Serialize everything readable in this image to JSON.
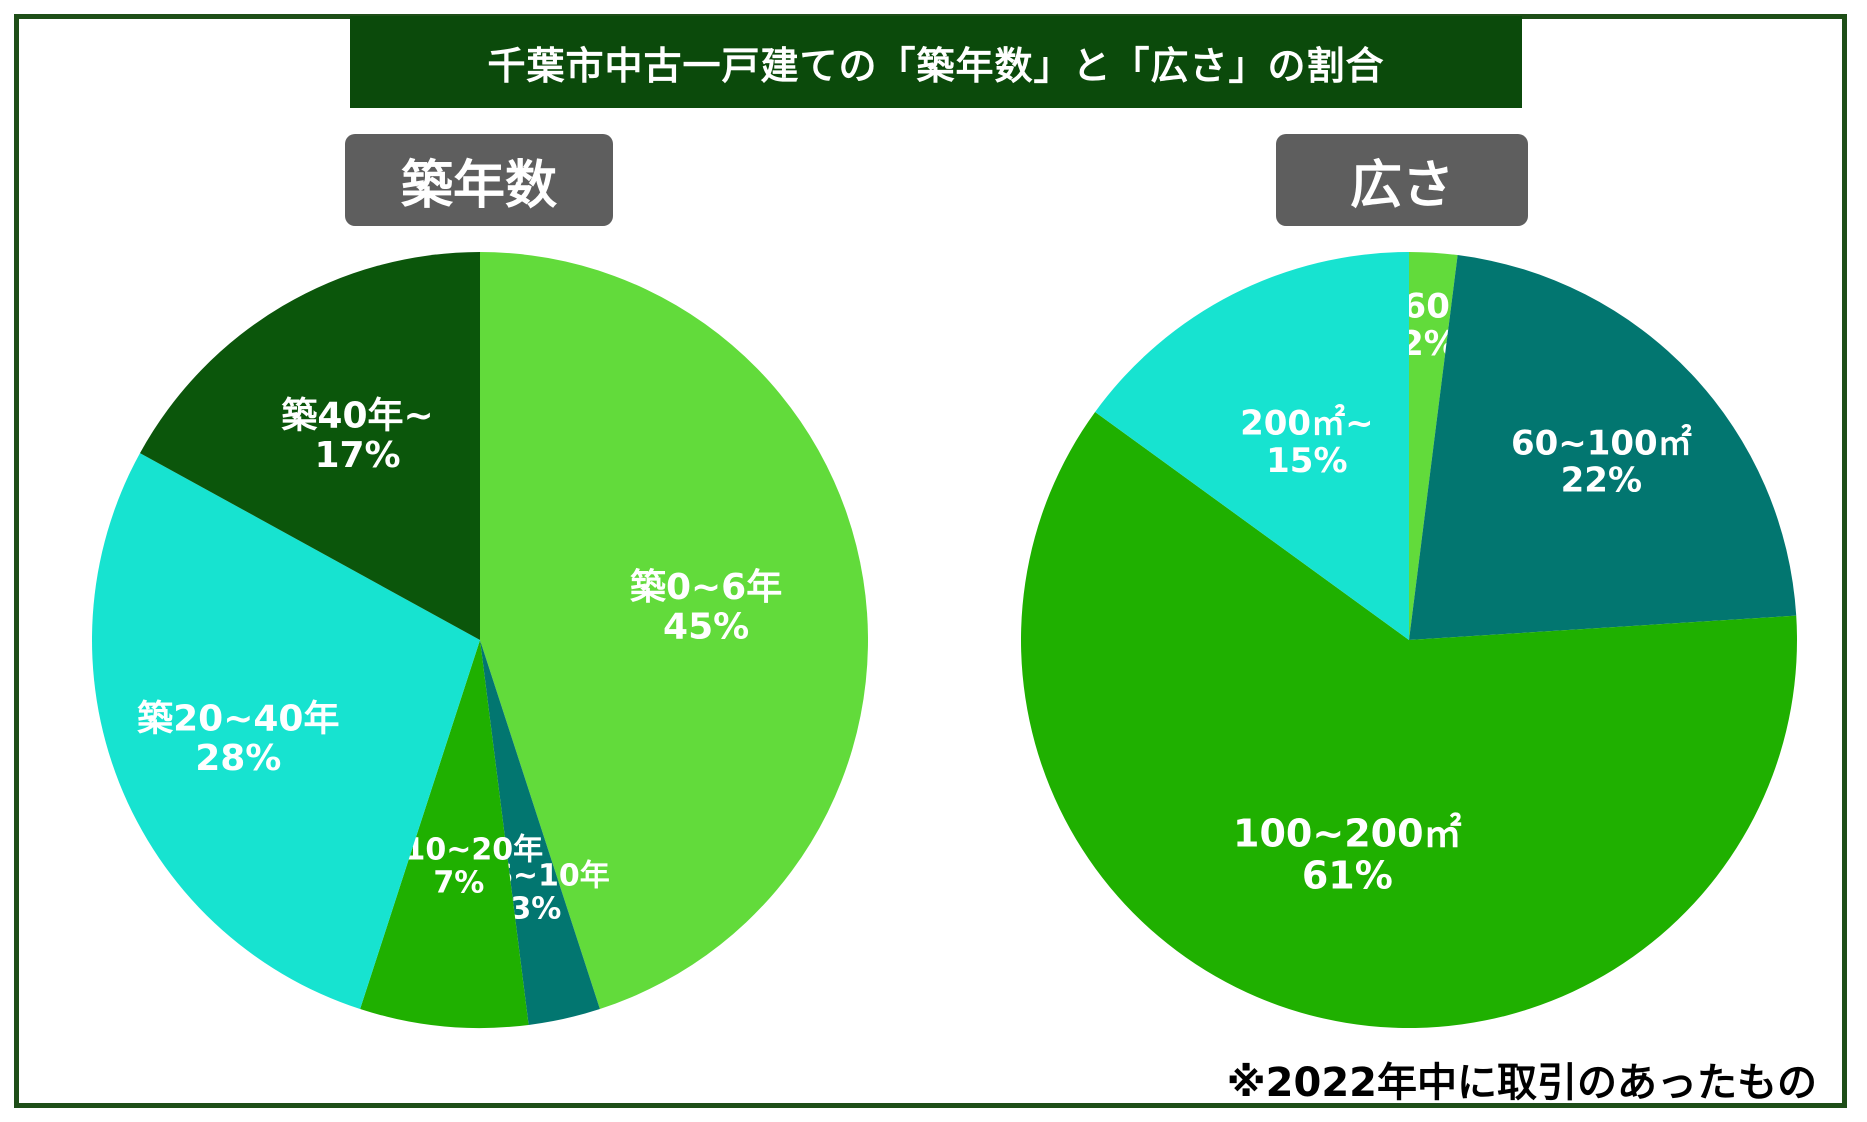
{
  "title": "千葉市中古一戸建ての「築年数」と「広さ」の割合",
  "note": "※2022年中に取引のあったもの",
  "chart_data": [
    {
      "type": "pie",
      "title": "築年数",
      "slices": [
        {
          "label": "築0~6年",
          "value": 45,
          "value_label": "45%",
          "color": "#62db3b"
        },
        {
          "label": "築6~10年",
          "value": 3,
          "value_label": "3%",
          "color": "#027670"
        },
        {
          "label": "築10~20年",
          "value": 7,
          "value_label": "7%",
          "color": "#1fb000"
        },
        {
          "label": "築20~40年",
          "value": 28,
          "value_label": "28%",
          "color": "#17e3d0"
        },
        {
          "label": "築40年~",
          "value": 17,
          "value_label": "17%",
          "color": "#0b560b"
        }
      ]
    },
    {
      "type": "pie",
      "title": "広さ",
      "slices": [
        {
          "label": "~60㎡",
          "value": 2,
          "value_label": "2%",
          "color": "#62db3b"
        },
        {
          "label": "60~100㎡",
          "value": 22,
          "value_label": "22%",
          "color": "#027670"
        },
        {
          "label": "100~200㎡",
          "value": 61,
          "value_label": "61%",
          "color": "#1fb000"
        },
        {
          "label": "200㎡~",
          "value": 15,
          "value_label": "15%",
          "color": "#17e3d0"
        }
      ]
    }
  ]
}
